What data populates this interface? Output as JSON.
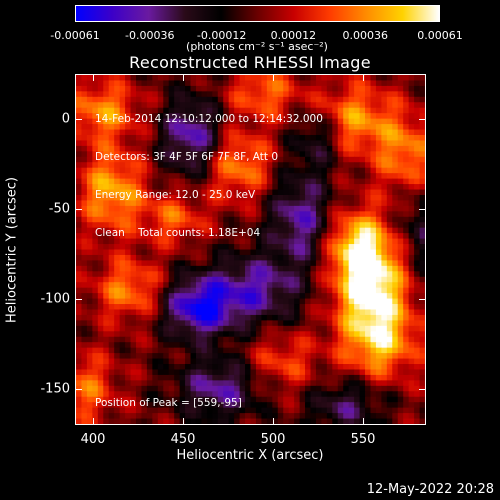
{
  "colorbar": {
    "ticks": [
      "-0.00061",
      "-0.00036",
      "-0.00012",
      "0.00012",
      "0.00036",
      "0.00061"
    ],
    "tick_values": [
      -0.00061,
      -0.00036,
      -0.00012,
      0.00012,
      0.00036,
      0.00061
    ],
    "range": [
      -0.00061,
      0.00061
    ],
    "unit": "(photons cm⁻² s⁻¹ asec⁻²)",
    "colors": [
      "#0000ff",
      "#3c00c8",
      "#6a1aa0",
      "#2a0a18",
      "#000000",
      "#6a0000",
      "#c80000",
      "#ff3c00",
      "#ff8c00",
      "#ffd200",
      "#ffffff"
    ]
  },
  "chart_data": {
    "type": "heatmap",
    "title": "Reconstructed RHESSI Image",
    "xlabel": "Heliocentric X (arcsec)",
    "ylabel": "Heliocentric Y (arcsec)",
    "xlim": [
      390,
      585
    ],
    "ylim": [
      -170,
      25
    ],
    "xticks": [
      "400",
      "450",
      "500",
      "550"
    ],
    "xtick_values": [
      400,
      450,
      500,
      550
    ],
    "yticks": [
      "0",
      "-50",
      "-100",
      "-150"
    ],
    "ytick_values": [
      0,
      -50,
      -100,
      -150
    ],
    "annotations": [
      "14-Feb-2014 12:10:12.000 to 12:14:32.000",
      "Detectors: 3F 4F 5F 6F 7F 8F, Att 0",
      "Energy Range: 12.0 - 25.0 keV",
      "Clean    Total counts: 1.18E+04"
    ],
    "peak_label": "Position of Peak = [559,-95]",
    "peak": [
      559,
      -95
    ],
    "sources": [
      {
        "x": 555,
        "y": -95,
        "amp": 0.00061,
        "sx": 14,
        "sy": 18
      },
      {
        "x": 548,
        "y": -70,
        "amp": 0.00048,
        "sx": 12,
        "sy": 14
      },
      {
        "x": 560,
        "y": -125,
        "amp": 0.0004,
        "sx": 15,
        "sy": 14
      },
      {
        "x": 545,
        "y": 0,
        "amp": 0.00038,
        "sx": 16,
        "sy": 14
      },
      {
        "x": 575,
        "y": -20,
        "amp": 0.00034,
        "sx": 12,
        "sy": 16
      },
      {
        "x": 410,
        "y": -40,
        "amp": 0.00042,
        "sx": 13,
        "sy": 16
      },
      {
        "x": 405,
        "y": 5,
        "amp": 0.00036,
        "sx": 14,
        "sy": 12
      },
      {
        "x": 420,
        "y": -95,
        "amp": 0.00034,
        "sx": 14,
        "sy": 12
      },
      {
        "x": 480,
        "y": -25,
        "amp": 0.00036,
        "sx": 14,
        "sy": 14
      },
      {
        "x": 495,
        "y": 15,
        "amp": 0.0003,
        "sx": 14,
        "sy": 10
      },
      {
        "x": 445,
        "y": -55,
        "amp": 0.00028,
        "sx": 12,
        "sy": 10
      },
      {
        "x": 395,
        "y": -150,
        "amp": 0.0003,
        "sx": 12,
        "sy": 14
      },
      {
        "x": 505,
        "y": -135,
        "amp": 0.00024,
        "sx": 14,
        "sy": 12
      },
      {
        "x": 455,
        "y": -10,
        "amp": -0.00045,
        "sx": 12,
        "sy": 16
      },
      {
        "x": 458,
        "y": -105,
        "amp": -0.00055,
        "sx": 14,
        "sy": 12
      },
      {
        "x": 490,
        "y": -95,
        "amp": -0.0004,
        "sx": 18,
        "sy": 14
      },
      {
        "x": 515,
        "y": -55,
        "amp": -0.0004,
        "sx": 12,
        "sy": 18
      },
      {
        "x": 470,
        "y": -150,
        "amp": -0.00038,
        "sx": 16,
        "sy": 12
      },
      {
        "x": 540,
        "y": -160,
        "amp": -0.0003,
        "sx": 14,
        "sy": 10
      },
      {
        "x": 525,
        "y": -10,
        "amp": -0.0003,
        "sx": 10,
        "sy": 12
      },
      {
        "x": 585,
        "y": -60,
        "amp": -0.00025,
        "sx": 10,
        "sy": 18
      }
    ]
  },
  "footer": {
    "date": "12-May-2022 20:28"
  }
}
